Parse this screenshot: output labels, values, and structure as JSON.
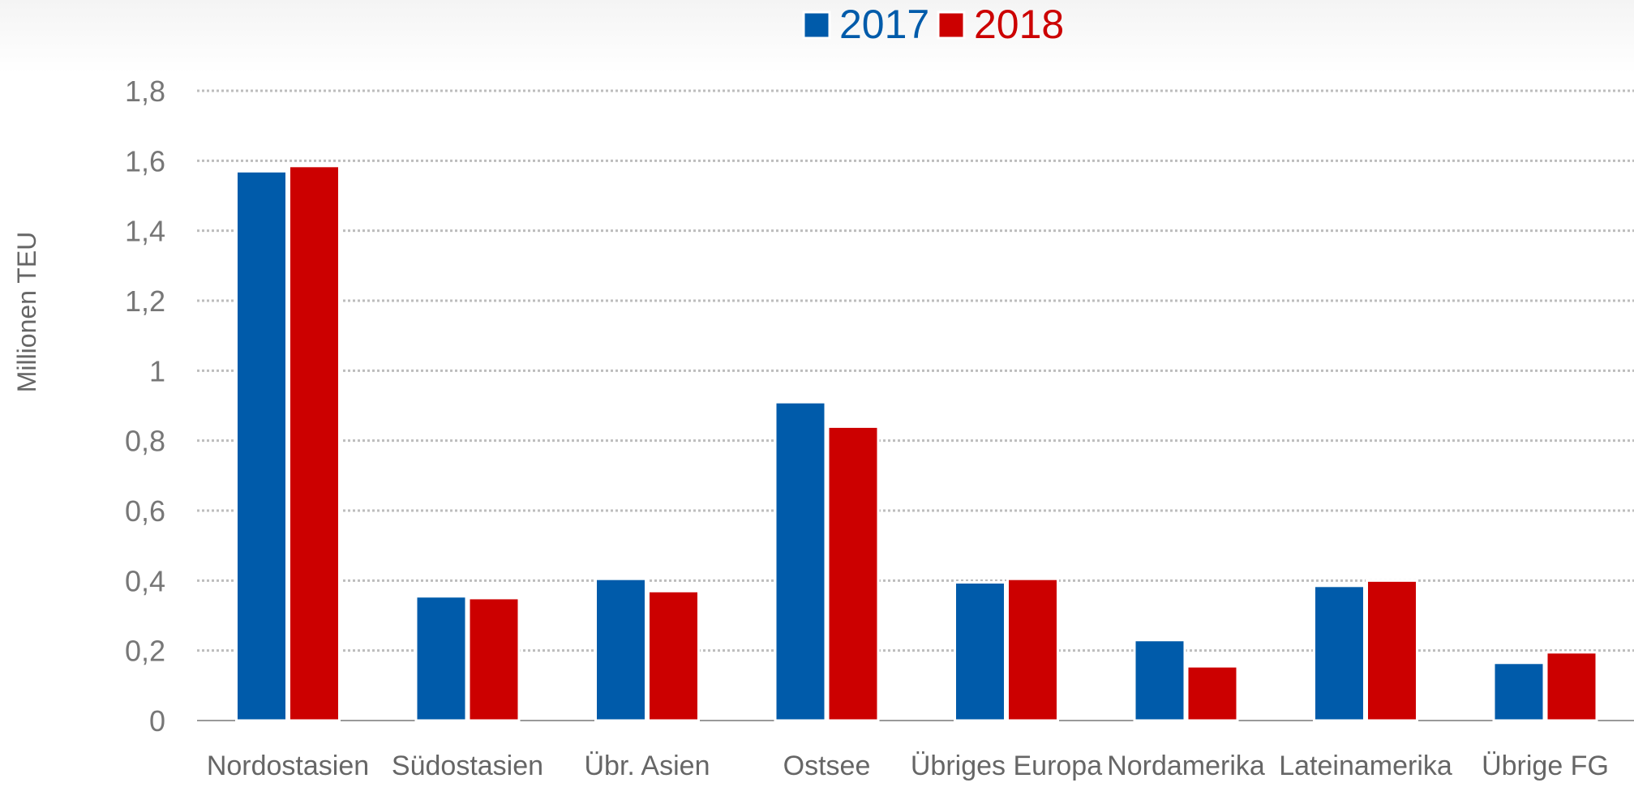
{
  "chart_data": {
    "type": "bar",
    "categories": [
      "Nordostasien",
      "Südostasien",
      "Übr. Asien",
      "Ostsee",
      "Übriges Europa",
      "Nordamerika",
      "Lateinamerika",
      "Übrige FG"
    ],
    "series": [
      {
        "name": "2017",
        "color": "#005baa",
        "values": [
          1.57,
          0.355,
          0.405,
          0.91,
          0.395,
          0.23,
          0.385,
          0.165
        ]
      },
      {
        "name": "2018",
        "color": "#cc0000",
        "values": [
          1.585,
          0.35,
          0.37,
          0.84,
          0.405,
          0.155,
          0.4,
          0.195
        ]
      }
    ],
    "ylabel": "Millionen TEU",
    "xlabel": "",
    "ylim": [
      0,
      1.8
    ],
    "yticks": [
      0,
      0.2,
      0.4,
      0.6,
      0.8,
      1,
      1.2,
      1.4,
      1.6,
      1.8
    ],
    "ytick_labels": [
      "0",
      "0,2",
      "0,4",
      "0,6",
      "0,8",
      "1",
      "1,2",
      "1,4",
      "1,6",
      "1,8"
    ],
    "grid": true,
    "legend_position": "top-center"
  }
}
